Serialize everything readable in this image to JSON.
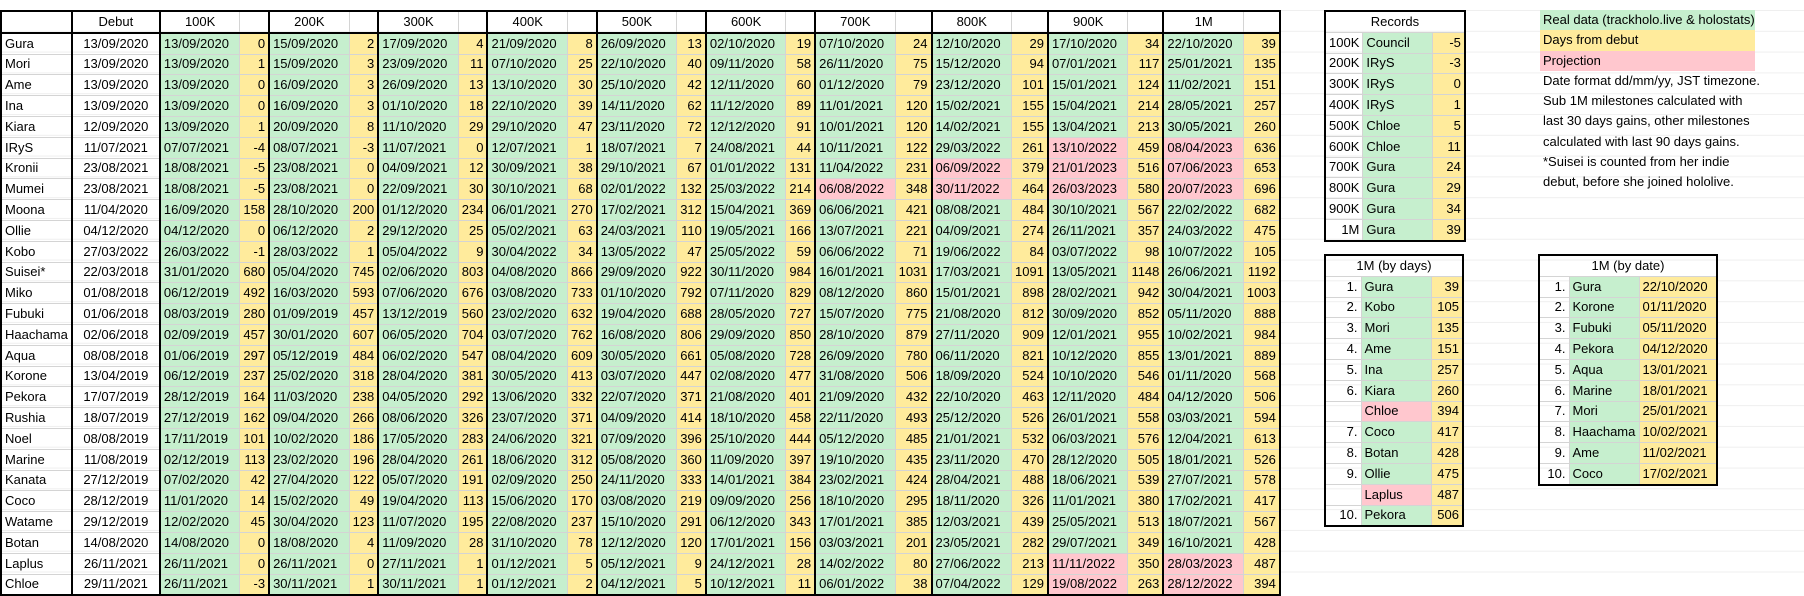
{
  "main": {
    "headers": [
      "",
      "Debut",
      "100K",
      "",
      "200K",
      "",
      "300K",
      "",
      "400K",
      "",
      "500K",
      "",
      "600K",
      "",
      "700K",
      "",
      "800K",
      "",
      "900K",
      "",
      "1M",
      ""
    ],
    "rows": [
      [
        "Gura",
        "13/09/2020",
        "13/09/2020",
        "0",
        "15/09/2020",
        "2",
        "17/09/2020",
        "4",
        "21/09/2020",
        "8",
        "26/09/2020",
        "13",
        "02/10/2020",
        "19",
        "07/10/2020",
        "24",
        "12/10/2020",
        "29",
        "17/10/2020",
        "34",
        "22/10/2020",
        "39"
      ],
      [
        "Mori",
        "13/09/2020",
        "13/09/2020",
        "1",
        "15/09/2020",
        "3",
        "23/09/2020",
        "11",
        "07/10/2020",
        "25",
        "22/10/2020",
        "40",
        "09/11/2020",
        "58",
        "26/11/2020",
        "75",
        "15/12/2020",
        "94",
        "07/01/2021",
        "117",
        "25/01/2021",
        "135"
      ],
      [
        "Ame",
        "13/09/2020",
        "13/09/2020",
        "0",
        "16/09/2020",
        "3",
        "26/09/2020",
        "13",
        "13/10/2020",
        "30",
        "25/10/2020",
        "42",
        "12/11/2020",
        "60",
        "01/12/2020",
        "79",
        "23/12/2020",
        "101",
        "15/01/2021",
        "124",
        "11/02/2021",
        "151"
      ],
      [
        "Ina",
        "13/09/2020",
        "13/09/2020",
        "0",
        "16/09/2020",
        "3",
        "01/10/2020",
        "18",
        "22/10/2020",
        "39",
        "14/11/2020",
        "62",
        "11/12/2020",
        "89",
        "11/01/2021",
        "120",
        "15/02/2021",
        "155",
        "15/04/2021",
        "214",
        "28/05/2021",
        "257"
      ],
      [
        "Kiara",
        "12/09/2020",
        "13/09/2020",
        "1",
        "20/09/2020",
        "8",
        "11/10/2020",
        "29",
        "29/10/2020",
        "47",
        "23/11/2020",
        "72",
        "12/12/2020",
        "91",
        "10/01/2021",
        "120",
        "14/02/2021",
        "155",
        "13/04/2021",
        "213",
        "30/05/2021",
        "260"
      ],
      [
        "IRyS",
        "11/07/2021",
        "07/07/2021",
        "-4",
        "08/07/2021",
        "-3",
        "11/07/2021",
        "0",
        "12/07/2021",
        "1",
        "18/07/2021",
        "7",
        "24/08/2021",
        "44",
        "10/11/2021",
        "122",
        "29/03/2022",
        "261",
        "13/10/2022",
        "459",
        "08/04/2023",
        "636"
      ],
      [
        "Kronii",
        "23/08/2021",
        "18/08/2021",
        "-5",
        "23/08/2021",
        "0",
        "04/09/2021",
        "12",
        "30/09/2021",
        "38",
        "29/10/2021",
        "67",
        "01/01/2022",
        "131",
        "11/04/2022",
        "231",
        "06/09/2022",
        "379",
        "21/01/2023",
        "516",
        "07/06/2023",
        "653"
      ],
      [
        "Mumei",
        "23/08/2021",
        "18/08/2021",
        "-5",
        "23/08/2021",
        "0",
        "22/09/2021",
        "30",
        "30/10/2021",
        "68",
        "02/01/2022",
        "132",
        "25/03/2022",
        "214",
        "06/08/2022",
        "348",
        "30/11/2022",
        "464",
        "26/03/2023",
        "580",
        "20/07/2023",
        "696"
      ],
      [
        "Moona",
        "11/04/2020",
        "16/09/2020",
        "158",
        "28/10/2020",
        "200",
        "01/12/2020",
        "234",
        "06/01/2021",
        "270",
        "17/02/2021",
        "312",
        "15/04/2021",
        "369",
        "06/06/2021",
        "421",
        "08/08/2021",
        "484",
        "30/10/2021",
        "567",
        "22/02/2022",
        "682"
      ],
      [
        "Ollie",
        "04/12/2020",
        "04/12/2020",
        "0",
        "06/12/2020",
        "2",
        "29/12/2020",
        "25",
        "05/02/2021",
        "63",
        "24/03/2021",
        "110",
        "19/05/2021",
        "166",
        "13/07/2021",
        "221",
        "04/09/2021",
        "274",
        "26/11/2021",
        "357",
        "24/03/2022",
        "475"
      ],
      [
        "Kobo",
        "27/03/2022",
        "26/03/2022",
        "-1",
        "28/03/2022",
        "1",
        "05/04/2022",
        "9",
        "30/04/2022",
        "34",
        "13/05/2022",
        "47",
        "25/05/2022",
        "59",
        "06/06/2022",
        "71",
        "19/06/2022",
        "84",
        "03/07/2022",
        "98",
        "10/07/2022",
        "105"
      ],
      [
        "Suisei*",
        "22/03/2018",
        "31/01/2020",
        "680",
        "05/04/2020",
        "745",
        "02/06/2020",
        "803",
        "04/08/2020",
        "866",
        "29/09/2020",
        "922",
        "30/11/2020",
        "984",
        "16/01/2021",
        "1031",
        "17/03/2021",
        "1091",
        "13/05/2021",
        "1148",
        "26/06/2021",
        "1192"
      ],
      [
        "Miko",
        "01/08/2018",
        "06/12/2019",
        "492",
        "16/03/2020",
        "593",
        "07/06/2020",
        "676",
        "03/08/2020",
        "733",
        "01/10/2020",
        "792",
        "07/11/2020",
        "829",
        "08/12/2020",
        "860",
        "15/01/2021",
        "898",
        "28/02/2021",
        "942",
        "30/04/2021",
        "1003"
      ],
      [
        "Fubuki",
        "01/06/2018",
        "08/03/2019",
        "280",
        "01/09/2019",
        "457",
        "13/12/2019",
        "560",
        "23/02/2020",
        "632",
        "19/04/2020",
        "688",
        "28/05/2020",
        "727",
        "15/07/2020",
        "775",
        "21/08/2020",
        "812",
        "30/09/2020",
        "852",
        "05/11/2020",
        "888"
      ],
      [
        "Haachama",
        "02/06/2018",
        "02/09/2019",
        "457",
        "30/01/2020",
        "607",
        "06/05/2020",
        "704",
        "03/07/2020",
        "762",
        "16/08/2020",
        "806",
        "29/09/2020",
        "850",
        "28/10/2020",
        "879",
        "27/11/2020",
        "909",
        "12/01/2021",
        "955",
        "10/02/2021",
        "984"
      ],
      [
        "Aqua",
        "08/08/2018",
        "01/06/2019",
        "297",
        "05/12/2019",
        "484",
        "06/02/2020",
        "547",
        "08/04/2020",
        "609",
        "30/05/2020",
        "661",
        "05/08/2020",
        "728",
        "26/09/2020",
        "780",
        "06/11/2020",
        "821",
        "10/12/2020",
        "855",
        "13/01/2021",
        "889"
      ],
      [
        "Korone",
        "13/04/2019",
        "06/12/2019",
        "237",
        "25/02/2020",
        "318",
        "28/04/2020",
        "381",
        "30/05/2020",
        "413",
        "03/07/2020",
        "447",
        "02/08/2020",
        "477",
        "31/08/2020",
        "506",
        "18/09/2020",
        "524",
        "10/10/2020",
        "546",
        "01/11/2020",
        "568"
      ],
      [
        "Pekora",
        "17/07/2019",
        "28/12/2019",
        "164",
        "11/03/2020",
        "238",
        "04/05/2020",
        "292",
        "13/06/2020",
        "332",
        "22/07/2020",
        "371",
        "21/08/2020",
        "401",
        "21/09/2020",
        "432",
        "22/10/2020",
        "463",
        "12/11/2020",
        "484",
        "04/12/2020",
        "506"
      ],
      [
        "Rushia",
        "18/07/2019",
        "27/12/2019",
        "162",
        "09/04/2020",
        "266",
        "08/06/2020",
        "326",
        "23/07/2020",
        "371",
        "04/09/2020",
        "414",
        "18/10/2020",
        "458",
        "22/11/2020",
        "493",
        "25/12/2020",
        "526",
        "26/01/2021",
        "558",
        "03/03/2021",
        "594"
      ],
      [
        "Noel",
        "08/08/2019",
        "17/11/2019",
        "101",
        "10/02/2020",
        "186",
        "17/05/2020",
        "283",
        "24/06/2020",
        "321",
        "07/09/2020",
        "396",
        "25/10/2020",
        "444",
        "05/12/2020",
        "485",
        "21/01/2021",
        "532",
        "06/03/2021",
        "576",
        "12/04/2021",
        "613"
      ],
      [
        "Marine",
        "11/08/2019",
        "02/12/2019",
        "113",
        "23/02/2020",
        "196",
        "28/04/2020",
        "261",
        "18/06/2020",
        "312",
        "05/08/2020",
        "360",
        "11/09/2020",
        "397",
        "19/10/2020",
        "435",
        "23/11/2020",
        "470",
        "28/12/2020",
        "505",
        "18/01/2021",
        "526"
      ],
      [
        "Kanata",
        "27/12/2019",
        "07/02/2020",
        "42",
        "27/04/2020",
        "122",
        "05/07/2020",
        "191",
        "02/09/2020",
        "250",
        "24/11/2020",
        "333",
        "14/01/2021",
        "384",
        "23/02/2021",
        "424",
        "28/04/2021",
        "488",
        "18/06/2021",
        "539",
        "27/07/2021",
        "578"
      ],
      [
        "Coco",
        "28/12/2019",
        "11/01/2020",
        "14",
        "15/02/2020",
        "49",
        "19/04/2020",
        "113",
        "15/06/2020",
        "170",
        "03/08/2020",
        "219",
        "09/09/2020",
        "256",
        "18/10/2020",
        "295",
        "18/11/2020",
        "326",
        "11/01/2021",
        "380",
        "17/02/2021",
        "417"
      ],
      [
        "Watame",
        "29/12/2019",
        "12/02/2020",
        "45",
        "30/04/2020",
        "123",
        "11/07/2020",
        "195",
        "22/08/2020",
        "237",
        "15/10/2020",
        "291",
        "06/12/2020",
        "343",
        "17/01/2021",
        "385",
        "12/03/2021",
        "439",
        "25/05/2021",
        "513",
        "18/07/2021",
        "567"
      ],
      [
        "Botan",
        "14/08/2020",
        "14/08/2020",
        "0",
        "18/08/2020",
        "4",
        "11/09/2020",
        "28",
        "31/10/2020",
        "78",
        "12/12/2020",
        "120",
        "17/01/2021",
        "156",
        "03/03/2021",
        "201",
        "23/05/2021",
        "282",
        "29/07/2021",
        "349",
        "16/10/2021",
        "428"
      ],
      [
        "Laplus",
        "26/11/2021",
        "26/11/2021",
        "0",
        "26/11/2021",
        "0",
        "27/11/2021",
        "1",
        "01/12/2021",
        "5",
        "05/12/2021",
        "9",
        "24/12/2021",
        "28",
        "14/02/2022",
        "80",
        "27/06/2022",
        "213",
        "11/11/2022",
        "350",
        "28/03/2023",
        "487"
      ],
      [
        "Chloe",
        "29/11/2021",
        "26/11/2021",
        "-3",
        "30/11/2021",
        "1",
        "30/11/2021",
        "1",
        "01/12/2021",
        "2",
        "04/12/2021",
        "5",
        "10/12/2021",
        "11",
        "06/01/2022",
        "38",
        "07/04/2022",
        "129",
        "19/08/2022",
        "263",
        "28/12/2022",
        "394"
      ]
    ],
    "red_cells": [
      [
        5,
        18
      ],
      [
        5,
        20
      ],
      [
        6,
        16
      ],
      [
        6,
        18
      ],
      [
        6,
        20
      ],
      [
        7,
        14
      ],
      [
        7,
        16
      ],
      [
        7,
        18
      ],
      [
        7,
        20
      ],
      [
        25,
        18
      ],
      [
        25,
        20
      ],
      [
        26,
        18
      ],
      [
        26,
        20
      ]
    ]
  },
  "records": {
    "title": "Records",
    "rows": [
      [
        "100K",
        "Council",
        "-5"
      ],
      [
        "200K",
        "IRyS",
        "-3"
      ],
      [
        "300K",
        "IRyS",
        "0"
      ],
      [
        "400K",
        "IRyS",
        "1"
      ],
      [
        "500K",
        "Chloe",
        "5"
      ],
      [
        "600K",
        "Chloe",
        "11"
      ],
      [
        "700K",
        "Gura",
        "24"
      ],
      [
        "800K",
        "Gura",
        "29"
      ],
      [
        "900K",
        "Gura",
        "34"
      ],
      [
        "1M",
        "Gura",
        "39"
      ]
    ]
  },
  "bydays": {
    "title": "1M (by days)",
    "rows": [
      [
        "1.",
        "Gura",
        "39",
        ""
      ],
      [
        "2.",
        "Kobo",
        "105",
        ""
      ],
      [
        "3.",
        "Mori",
        "135",
        ""
      ],
      [
        "4.",
        "Ame",
        "151",
        ""
      ],
      [
        "5.",
        "Ina",
        "257",
        ""
      ],
      [
        "6.",
        "Kiara",
        "260",
        ""
      ],
      [
        "",
        "Chloe",
        "394",
        "r"
      ],
      [
        "7.",
        "Coco",
        "417",
        ""
      ],
      [
        "8.",
        "Botan",
        "428",
        ""
      ],
      [
        "9.",
        "Ollie",
        "475",
        ""
      ],
      [
        "",
        "Laplus",
        "487",
        "r"
      ],
      [
        "10.",
        "Pekora",
        "506",
        ""
      ]
    ]
  },
  "bydate": {
    "title": "1M (by date)",
    "rows": [
      [
        "1.",
        "Gura",
        "22/10/2020"
      ],
      [
        "2.",
        "Korone",
        "01/11/2020"
      ],
      [
        "3.",
        "Fubuki",
        "05/11/2020"
      ],
      [
        "4.",
        "Pekora",
        "04/12/2020"
      ],
      [
        "5.",
        "Aqua",
        "13/01/2021"
      ],
      [
        "6.",
        "Marine",
        "18/01/2021"
      ],
      [
        "7.",
        "Mori",
        "25/01/2021"
      ],
      [
        "8.",
        "Haachama",
        "10/02/2021"
      ],
      [
        "9.",
        "Ame",
        "11/02/2021"
      ],
      [
        "10.",
        "Coco",
        "17/02/2021"
      ]
    ]
  },
  "legend": {
    "real": "Real data (trackholo.live & holostats)",
    "days": "Days from debut",
    "projection": "Projection",
    "notes": [
      "Date format dd/mm/yy, JST timezone.",
      "Sub 1M milestones calculated with",
      "last 30 days gains, other milestones",
      "calculated with last 90 days gains.",
      "*Suisei is counted from her indie",
      "debut, before she joined hololive."
    ]
  },
  "colors": {
    "real": "#c6efce",
    "days": "#ffeb9c",
    "projection": "#ffc7ce"
  }
}
